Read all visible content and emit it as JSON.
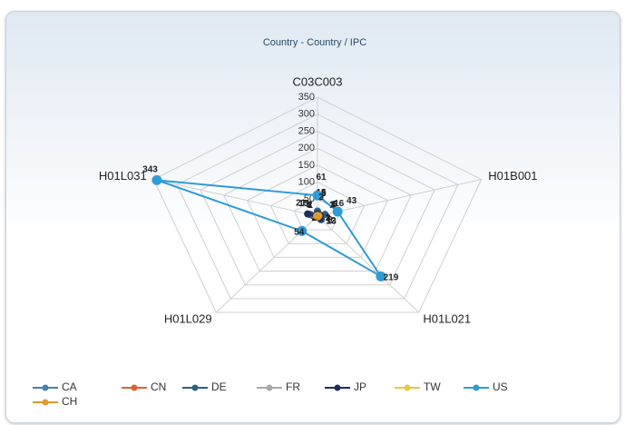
{
  "chart_data": {
    "type": "radar",
    "title": "Country - Country / IPC",
    "categories": [
      "C03C003",
      "H01B001",
      "H01L021",
      "H01L029",
      "H01L031"
    ],
    "rlim": [
      0,
      350
    ],
    "rticks": [
      0,
      50,
      100,
      150,
      200,
      250,
      300,
      350
    ],
    "grid": true,
    "legend": "bottom-left",
    "series": [
      {
        "name": "CA",
        "color": "#4a7fb0",
        "values": [
          15,
          6,
          12,
          1,
          3
        ]
      },
      {
        "name": "CN",
        "color": "#e0612d",
        "values": [
          2,
          1,
          3,
          2,
          5
        ]
      },
      {
        "name": "DE",
        "color": "#2c5f80",
        "values": [
          13,
          16,
          13,
          1,
          15
        ]
      },
      {
        "name": "FR",
        "color": "#a9a9a9",
        "values": [
          3,
          2,
          1,
          1,
          2
        ]
      },
      {
        "name": "JP",
        "color": "#1f2d5a",
        "values": [
          6,
          6,
          9,
          2,
          21
        ]
      },
      {
        "name": "TW",
        "color": "#e8c840",
        "values": [
          1,
          1,
          2,
          1,
          1
        ]
      },
      {
        "name": "US",
        "color": "#2f9bd6",
        "values": [
          61,
          43,
          219,
          54,
          343
        ]
      },
      {
        "name": "CH",
        "color": "#dc9a2e",
        "values": [
          2,
          3,
          1,
          1,
          2
        ]
      }
    ]
  }
}
